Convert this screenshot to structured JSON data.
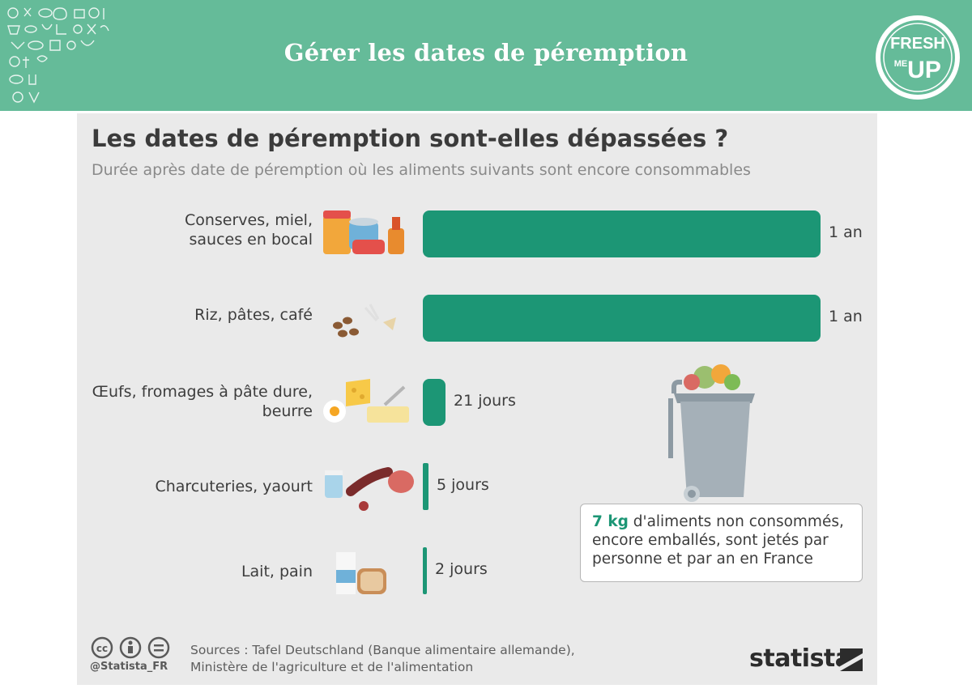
{
  "header": {
    "title": "Gérer les dates de péremption",
    "logo_line1": "FRESH",
    "logo_line2": "ME",
    "logo_line3": "UP",
    "background_color": "#65bb99"
  },
  "chart_data": {
    "type": "bar",
    "orientation": "horizontal",
    "title": "Les dates de péremption sont-elles dépassées ?",
    "subtitle": "Durée après date de péremption où les aliments suivants sont encore consommables",
    "categories": [
      "Conserves, miel,\nsauces en bocal",
      "Riz, pâtes, café",
      "Œufs, fromages à pâte dure,\nbeurre",
      "Charcuteries, yaourt",
      "Lait, pain"
    ],
    "values_days": [
      365,
      365,
      21,
      5,
      2
    ],
    "value_labels": [
      "1 an",
      "1 an",
      "21 jours",
      "5 jours",
      "2 jours"
    ],
    "bar_color": "#1c9675",
    "grid": false
  },
  "callout": {
    "highlight": "7 kg",
    "text": " d'aliments non consommés, encore emballés, sont jetés par personne et par an en France",
    "highlight_color": "#1c9675"
  },
  "footer": {
    "handle": "@Statista_FR",
    "sources": "Sources : Tafel Deutschland (Banque alimentaire allemande),\nMinistère de l'agriculture et de l'alimentation",
    "brand": "statista"
  }
}
